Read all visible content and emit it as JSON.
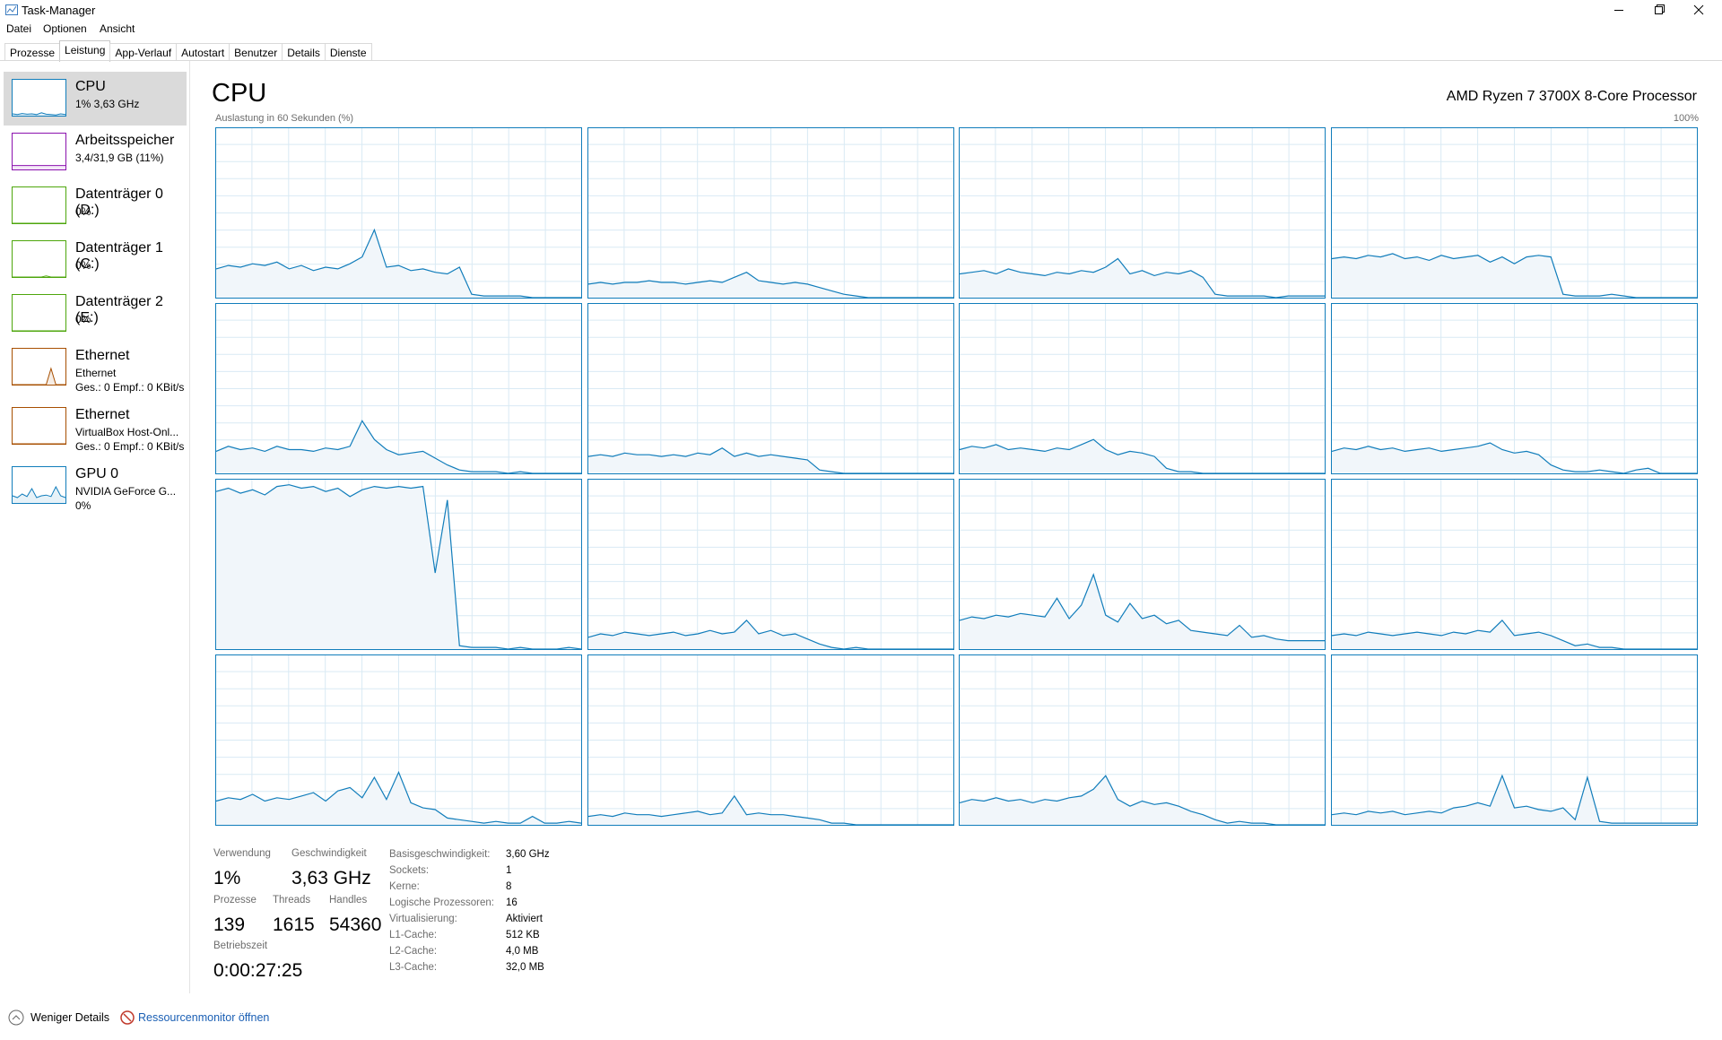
{
  "window": {
    "title": "Task-Manager"
  },
  "menu": [
    "Datei",
    "Optionen",
    "Ansicht"
  ],
  "tabs": [
    {
      "label": "Prozesse"
    },
    {
      "label": "Leistung",
      "selected": true
    },
    {
      "label": "App-Verlauf"
    },
    {
      "label": "Autostart"
    },
    {
      "label": "Benutzer"
    },
    {
      "label": "Details"
    },
    {
      "label": "Dienste"
    }
  ],
  "sidebar": [
    {
      "name": "CPU",
      "lines": [
        "1% 3,63 GHz"
      ],
      "color": "#117dbb",
      "selected": true,
      "graph": [
        5,
        3,
        6,
        4,
        5,
        3,
        8,
        4,
        3,
        2,
        5,
        3
      ]
    },
    {
      "name": "Arbeitsspeicher",
      "lines": [
        "3,4/31,9 GB (11%)"
      ],
      "color": "#8b12ae",
      "graph": [
        11,
        11,
        11,
        11,
        11,
        11,
        11,
        11,
        11,
        11,
        11,
        11
      ]
    },
    {
      "name": "Datenträger 0 (D:)",
      "lines": [
        "0%"
      ],
      "color": "#4da60c",
      "graph": [
        0,
        0,
        0,
        0,
        0,
        0,
        0,
        0,
        0,
        0,
        0,
        0
      ]
    },
    {
      "name": "Datenträger 1 (C:)",
      "lines": [
        "0%"
      ],
      "color": "#4da60c",
      "graph": [
        0,
        0,
        0,
        0,
        0,
        0,
        0,
        3,
        0,
        0,
        0,
        0
      ]
    },
    {
      "name": "Datenträger 2 (E:)",
      "lines": [
        "0%"
      ],
      "color": "#4da60c",
      "graph": [
        0,
        0,
        0,
        0,
        0,
        0,
        0,
        0,
        0,
        0,
        0,
        0
      ]
    },
    {
      "name": "Ethernet",
      "lines": [
        "Ethernet",
        "Ges.: 0 Empf.: 0 KBit/s"
      ],
      "color": "#a74f01",
      "graph": [
        0,
        0,
        0,
        0,
        0,
        0,
        0,
        0,
        45,
        0,
        0,
        0
      ]
    },
    {
      "name": "Ethernet",
      "lines": [
        "VirtualBox Host-Onl...",
        "Ges.: 0 Empf.: 0 KBit/s"
      ],
      "color": "#a74f01",
      "graph": [
        0,
        0,
        0,
        0,
        0,
        0,
        0,
        0,
        0,
        0,
        0,
        0
      ]
    },
    {
      "name": "GPU 0",
      "lines": [
        "NVIDIA GeForce G...",
        "0%"
      ],
      "color": "#117dbb",
      "graph": [
        20,
        15,
        25,
        18,
        40,
        15,
        20,
        22,
        18,
        45,
        20,
        15
      ]
    }
  ],
  "main": {
    "title": "CPU",
    "processor": "AMD Ryzen 7 3700X 8-Core Processor",
    "graph_label": "Auslastung in 60 Sekunden (%)",
    "y_max": {
      "value": 100,
      "label": "100%"
    },
    "color": "#117dbb",
    "cores": [
      [
        17,
        19,
        18,
        20,
        19,
        21,
        17,
        19,
        16,
        18,
        17,
        20,
        24,
        40,
        18,
        19,
        16,
        17,
        15,
        14,
        18,
        2,
        1,
        1,
        1,
        1,
        0,
        0,
        0,
        0,
        0
      ],
      [
        8,
        9,
        8,
        9,
        9,
        10,
        9,
        9,
        8,
        9,
        10,
        9,
        12,
        15,
        10,
        9,
        8,
        9,
        8,
        6,
        4,
        2,
        1,
        0,
        0,
        0,
        0,
        0,
        0,
        0,
        0
      ],
      [
        14,
        15,
        16,
        14,
        17,
        15,
        14,
        13,
        15,
        14,
        16,
        15,
        18,
        23,
        14,
        16,
        13,
        15,
        14,
        16,
        12,
        2,
        1,
        1,
        1,
        1,
        0,
        1,
        1,
        1,
        1
      ],
      [
        23,
        24,
        23,
        25,
        24,
        26,
        23,
        24,
        22,
        25,
        23,
        24,
        25,
        21,
        24,
        20,
        24,
        25,
        24,
        2,
        1,
        1,
        1,
        2,
        1,
        0,
        0,
        0,
        0,
        0,
        0
      ],
      [
        13,
        16,
        14,
        15,
        13,
        16,
        14,
        14,
        13,
        15,
        14,
        16,
        31,
        20,
        14,
        11,
        12,
        13,
        9,
        5,
        2,
        1,
        1,
        1,
        0,
        1,
        0,
        0,
        0,
        0,
        0
      ],
      [
        10,
        11,
        10,
        12,
        11,
        11,
        10,
        11,
        10,
        12,
        11,
        15,
        10,
        12,
        10,
        11,
        10,
        9,
        8,
        2,
        1,
        0,
        0,
        0,
        0,
        0,
        0,
        0,
        0,
        0,
        0
      ],
      [
        14,
        16,
        15,
        17,
        14,
        15,
        14,
        13,
        15,
        14,
        17,
        20,
        14,
        11,
        13,
        12,
        10,
        3,
        1,
        1,
        0,
        0,
        0,
        0,
        0,
        0,
        0,
        0,
        0,
        0,
        0
      ],
      [
        13,
        15,
        14,
        16,
        14,
        15,
        13,
        14,
        15,
        13,
        14,
        15,
        16,
        18,
        14,
        12,
        13,
        11,
        5,
        2,
        1,
        1,
        2,
        1,
        0,
        2,
        3,
        0,
        0,
        0,
        0
      ],
      [
        93,
        95,
        92,
        94,
        91,
        96,
        97,
        95,
        96,
        93,
        95,
        90,
        94,
        96,
        95,
        96,
        95,
        96,
        45,
        88,
        2,
        1,
        1,
        1,
        0,
        1,
        0,
        0,
        0,
        1,
        0
      ],
      [
        7,
        9,
        8,
        10,
        9,
        8,
        9,
        10,
        8,
        9,
        11,
        9,
        10,
        17,
        9,
        11,
        8,
        9,
        6,
        3,
        1,
        0,
        1,
        0,
        0,
        0,
        0,
        0,
        0,
        0,
        0
      ],
      [
        17,
        19,
        18,
        20,
        19,
        21,
        20,
        19,
        30,
        18,
        26,
        44,
        20,
        16,
        27,
        18,
        20,
        15,
        17,
        11,
        10,
        9,
        8,
        14,
        7,
        8,
        6,
        5,
        5,
        5,
        5
      ],
      [
        8,
        9,
        8,
        10,
        9,
        8,
        9,
        10,
        9,
        8,
        10,
        9,
        11,
        10,
        17,
        8,
        9,
        10,
        8,
        5,
        2,
        3,
        1,
        1,
        0,
        0,
        0,
        0,
        0,
        0,
        0
      ],
      [
        14,
        16,
        15,
        18,
        14,
        16,
        15,
        17,
        19,
        14,
        20,
        22,
        16,
        28,
        15,
        31,
        13,
        10,
        9,
        4,
        3,
        2,
        1,
        2,
        1,
        1,
        5,
        1,
        1,
        2,
        1
      ],
      [
        5,
        6,
        5,
        7,
        6,
        6,
        5,
        6,
        7,
        8,
        6,
        7,
        17,
        6,
        7,
        6,
        6,
        5,
        4,
        3,
        1,
        1,
        0,
        0,
        0,
        0,
        0,
        0,
        0,
        0,
        0
      ],
      [
        13,
        15,
        14,
        16,
        14,
        15,
        13,
        15,
        14,
        16,
        17,
        21,
        29,
        15,
        11,
        14,
        12,
        13,
        11,
        8,
        6,
        3,
        1,
        2,
        1,
        1,
        0,
        0,
        0,
        0,
        0
      ],
      [
        6,
        7,
        6,
        8,
        7,
        8,
        6,
        7,
        8,
        7,
        10,
        11,
        13,
        11,
        29,
        10,
        11,
        9,
        8,
        10,
        3,
        28,
        2,
        1,
        1,
        1,
        1,
        1,
        1,
        1,
        1
      ]
    ]
  },
  "stats": [
    {
      "label": "Verwendung",
      "value": "1%"
    },
    {
      "label": "Geschwindigkeit",
      "value": "3,63 GHz"
    },
    {
      "label": "Prozesse",
      "value": "139"
    },
    {
      "label": "Threads",
      "value": "1615"
    },
    {
      "label": "Handles",
      "value": "54360"
    },
    {
      "label": "Betriebszeit",
      "value": "0:00:27:25"
    }
  ],
  "details": [
    [
      "Basisgeschwindigkeit:",
      "3,60 GHz"
    ],
    [
      "Sockets:",
      "1"
    ],
    [
      "Kerne:",
      "8"
    ],
    [
      "Logische Prozessoren:",
      "16"
    ],
    [
      "Virtualisierung:",
      "Aktiviert"
    ],
    [
      "L1-Cache:",
      "512 KB"
    ],
    [
      "L2-Cache:",
      "4,0 MB"
    ],
    [
      "L3-Cache:",
      "32,0 MB"
    ]
  ],
  "footer": {
    "less": "Weniger Details",
    "monitor": "Ressourcenmonitor öffnen"
  }
}
